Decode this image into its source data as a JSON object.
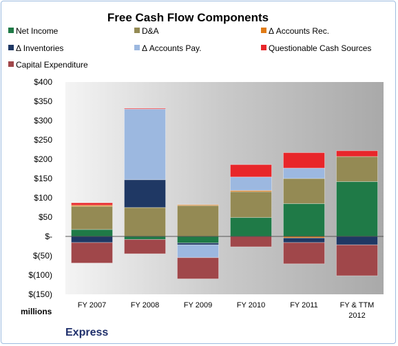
{
  "chart_data": {
    "type": "bar",
    "stacked": true,
    "title": "Free Cash Flow Components",
    "unit_label": "millions",
    "company": "Express",
    "categories": [
      "FY 2007",
      "FY 2008",
      "FY 2009",
      "FY 2010",
      "FY 2011",
      "FY & TTM|2012"
    ],
    "ylim": [
      -150,
      400
    ],
    "y_step": 50,
    "ytick_labels": [
      "$400",
      "$350",
      "$300",
      "$250",
      "$200",
      "$150",
      "$100",
      "$50",
      "$-",
      "$(50)",
      "$(100)",
      "$(150)"
    ],
    "grid": false,
    "legend_position": "top",
    "series": [
      {
        "name": "Net Income",
        "color": "#1f7a47",
        "values": [
          18,
          -8,
          -17,
          49,
          85,
          142
        ]
      },
      {
        "name": "D&A",
        "color": "#948a54",
        "values": [
          60,
          75,
          80,
          67,
          65,
          65
        ]
      },
      {
        "name": "Δ Accounts Rec.",
        "color": "#e07b16",
        "values": [
          3,
          0,
          2,
          3,
          -4,
          0
        ]
      },
      {
        "name": "Δ Inventories",
        "color": "#1f3864",
        "values": [
          -16,
          72,
          -5,
          0,
          -12,
          -22
        ]
      },
      {
        "name": "Δ Accounts Pay.",
        "color": "#9cb8e0",
        "values": [
          0,
          183,
          -33,
          35,
          27,
          0
        ]
      },
      {
        "name": "Questionable Cash Sources",
        "color": "#e8262a",
        "values": [
          6,
          2,
          0,
          32,
          40,
          15
        ]
      },
      {
        "name": "Capital Expenditure",
        "color": "#a0474a",
        "values": [
          -53,
          -37,
          -55,
          -27,
          -55,
          -80
        ]
      }
    ]
  }
}
